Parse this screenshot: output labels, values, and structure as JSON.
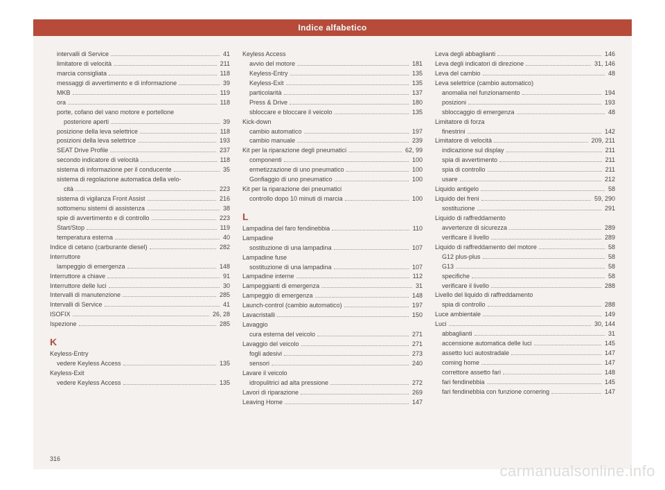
{
  "header": "Indice alfabetico",
  "page_number": "316",
  "watermark": "carmanualsonline.info",
  "style": {
    "page_bg": "#f5f1ee",
    "header_bg": "#b84a3a",
    "header_text": "#ffffff",
    "text_color": "#4a4540",
    "letter_color": "#b84a3a",
    "dot_color": "#9a9590",
    "entry_fontsize": 9,
    "header_fontsize": 12,
    "letter_fontsize": 14,
    "watermark_color": "#dcdcdc",
    "watermark_fontsize": 22
  },
  "columns": [
    {
      "items": [
        {
          "t": "entry",
          "indent": 1,
          "label": "intervalli di Service",
          "pg": "41"
        },
        {
          "t": "entry",
          "indent": 1,
          "label": "limitatore di velocità",
          "pg": "211"
        },
        {
          "t": "entry",
          "indent": 1,
          "label": "marcia consigliata",
          "pg": "118"
        },
        {
          "t": "entry",
          "indent": 1,
          "label": "messaggi di avvertimento e di informazione",
          "pg": "39"
        },
        {
          "t": "entry",
          "indent": 1,
          "label": "MKB",
          "pg": "119"
        },
        {
          "t": "entry",
          "indent": 1,
          "label": "ora",
          "pg": "118"
        },
        {
          "t": "entry",
          "indent": 1,
          "label": "porte, cofano del vano motore e portellone",
          "pg": ""
        },
        {
          "t": "entry",
          "indent": 2,
          "label": "posteriore aperti",
          "pg": "39"
        },
        {
          "t": "entry",
          "indent": 1,
          "label": "posizione della leva selettrice",
          "pg": "118"
        },
        {
          "t": "entry",
          "indent": 1,
          "label": "posizioni della leva selettrice",
          "pg": "193"
        },
        {
          "t": "entry",
          "indent": 1,
          "label": "SEAT Drive Profile",
          "pg": "237"
        },
        {
          "t": "entry",
          "indent": 1,
          "label": "secondo indicatore di velocità",
          "pg": "118"
        },
        {
          "t": "entry",
          "indent": 1,
          "label": "sistema di informazione per il conducente",
          "pg": "35"
        },
        {
          "t": "entry",
          "indent": 1,
          "label": "sistema di regolazione automatica della velo-",
          "pg": ""
        },
        {
          "t": "entry",
          "indent": 2,
          "label": "cità",
          "pg": "223"
        },
        {
          "t": "entry",
          "indent": 1,
          "label": "sistema di vigilanza Front Assist",
          "pg": "216"
        },
        {
          "t": "entry",
          "indent": 1,
          "label": "sottomenu sistemi di assistenza",
          "pg": "38"
        },
        {
          "t": "entry",
          "indent": 1,
          "label": "spie di avvertimento e di controllo",
          "pg": "223"
        },
        {
          "t": "entry",
          "indent": 1,
          "label": "Start/Stop",
          "pg": "119"
        },
        {
          "t": "entry",
          "indent": 1,
          "label": "temperatura esterna",
          "pg": "40"
        },
        {
          "t": "entry",
          "indent": 0,
          "label": "Indice di cetano (carburante diesel)",
          "pg": "282"
        },
        {
          "t": "entry",
          "indent": 0,
          "label": "Interruttore",
          "pg": ""
        },
        {
          "t": "entry",
          "indent": 1,
          "label": "lampeggio di emergenza",
          "pg": "148"
        },
        {
          "t": "entry",
          "indent": 0,
          "label": "Interruttore a chiave",
          "pg": "91"
        },
        {
          "t": "entry",
          "indent": 0,
          "label": "Interruttore delle luci",
          "pg": "30"
        },
        {
          "t": "entry",
          "indent": 0,
          "label": "Intervalli di manutenzione",
          "pg": "285"
        },
        {
          "t": "entry",
          "indent": 0,
          "label": "Intervalli di Service",
          "pg": "41"
        },
        {
          "t": "entry",
          "indent": 0,
          "label": "ISOFIX",
          "pg": "26, 28"
        },
        {
          "t": "entry",
          "indent": 0,
          "label": "Ispezione",
          "pg": "285"
        },
        {
          "t": "letter",
          "label": "K"
        },
        {
          "t": "entry",
          "indent": 0,
          "label": "Keyless-Entry",
          "pg": ""
        },
        {
          "t": "entry",
          "indent": 1,
          "label": "vedere Keyless Access",
          "pg": "135"
        },
        {
          "t": "entry",
          "indent": 0,
          "label": "Keyless-Exit",
          "pg": ""
        },
        {
          "t": "entry",
          "indent": 1,
          "label": "vedere Keyless Access",
          "pg": "135"
        }
      ]
    },
    {
      "items": [
        {
          "t": "entry",
          "indent": 0,
          "label": "Keyless Access",
          "pg": ""
        },
        {
          "t": "entry",
          "indent": 1,
          "label": "avvio del motore",
          "pg": "181"
        },
        {
          "t": "entry",
          "indent": 1,
          "label": "Keyless-Entry",
          "pg": "135"
        },
        {
          "t": "entry",
          "indent": 1,
          "label": "Keyless-Exit",
          "pg": "135"
        },
        {
          "t": "entry",
          "indent": 1,
          "label": "particolarità",
          "pg": "137"
        },
        {
          "t": "entry",
          "indent": 1,
          "label": "Press & Drive",
          "pg": "180"
        },
        {
          "t": "entry",
          "indent": 1,
          "label": "sbloccare e bloccare il veicolo",
          "pg": "135"
        },
        {
          "t": "entry",
          "indent": 0,
          "label": "Kick-down",
          "pg": ""
        },
        {
          "t": "entry",
          "indent": 1,
          "label": "cambio automatico",
          "pg": "197"
        },
        {
          "t": "entry",
          "indent": 1,
          "label": "cambio manuale",
          "pg": "239"
        },
        {
          "t": "entry",
          "indent": 0,
          "label": "Kit per la riparazione degli pneumatici",
          "pg": "62, 99"
        },
        {
          "t": "entry",
          "indent": 1,
          "label": "componenti",
          "pg": "100"
        },
        {
          "t": "entry",
          "indent": 1,
          "label": "ermetizzazione di uno pneumatico",
          "pg": "100"
        },
        {
          "t": "entry",
          "indent": 1,
          "label": "Gonfiaggio di uno pneumatico",
          "pg": "100"
        },
        {
          "t": "entry",
          "indent": 0,
          "label": "Kit per la riparazione dei pneumatici",
          "pg": ""
        },
        {
          "t": "entry",
          "indent": 1,
          "label": "controllo dopo 10 minuti di marcia",
          "pg": "100"
        },
        {
          "t": "letter",
          "label": "L"
        },
        {
          "t": "entry",
          "indent": 0,
          "label": "Lampadina del faro fendinebbia",
          "pg": "110"
        },
        {
          "t": "entry",
          "indent": 0,
          "label": "Lampadine",
          "pg": ""
        },
        {
          "t": "entry",
          "indent": 1,
          "label": "sostituzione di una lampadina",
          "pg": "107"
        },
        {
          "t": "entry",
          "indent": 0,
          "label": "Lampadine fuse",
          "pg": ""
        },
        {
          "t": "entry",
          "indent": 1,
          "label": "sostituzione di una lampadina",
          "pg": "107"
        },
        {
          "t": "entry",
          "indent": 0,
          "label": "Lampadine interne",
          "pg": "112"
        },
        {
          "t": "entry",
          "indent": 0,
          "label": "Lampeggianti di emergenza",
          "pg": "31"
        },
        {
          "t": "entry",
          "indent": 0,
          "label": "Lampeggio di emergenza",
          "pg": "148"
        },
        {
          "t": "entry",
          "indent": 0,
          "label": "Launch-control (cambio automatico)",
          "pg": "197"
        },
        {
          "t": "entry",
          "indent": 0,
          "label": "Lavacristalli",
          "pg": "150"
        },
        {
          "t": "entry",
          "indent": 0,
          "label": "Lavaggio",
          "pg": ""
        },
        {
          "t": "entry",
          "indent": 1,
          "label": "cura esterna del veicolo",
          "pg": "271"
        },
        {
          "t": "entry",
          "indent": 0,
          "label": "Lavaggio del veicolo",
          "pg": "271"
        },
        {
          "t": "entry",
          "indent": 1,
          "label": "fogli adesivi",
          "pg": "273"
        },
        {
          "t": "entry",
          "indent": 1,
          "label": "sensori",
          "pg": "240"
        },
        {
          "t": "entry",
          "indent": 0,
          "label": "Lavare il veicolo",
          "pg": ""
        },
        {
          "t": "entry",
          "indent": 1,
          "label": "idropulitrici ad alta pressione",
          "pg": "272"
        },
        {
          "t": "entry",
          "indent": 0,
          "label": "Lavori di riparazione",
          "pg": "269"
        },
        {
          "t": "entry",
          "indent": 0,
          "label": "Leaving Home",
          "pg": "147"
        }
      ]
    },
    {
      "items": [
        {
          "t": "entry",
          "indent": 0,
          "label": "Leva degli abbaglianti",
          "pg": "146"
        },
        {
          "t": "entry",
          "indent": 0,
          "label": "Leva degli indicatori di direzione",
          "pg": "31, 146"
        },
        {
          "t": "entry",
          "indent": 0,
          "label": "Leva del cambio",
          "pg": "48"
        },
        {
          "t": "entry",
          "indent": 0,
          "label": "Leva selettrice (cambio automatico)",
          "pg": ""
        },
        {
          "t": "entry",
          "indent": 1,
          "label": "anomalia nel funzionamento",
          "pg": "194"
        },
        {
          "t": "entry",
          "indent": 1,
          "label": "posizioni",
          "pg": "193"
        },
        {
          "t": "entry",
          "indent": 1,
          "label": "sbloccaggio di emergenza",
          "pg": "48"
        },
        {
          "t": "entry",
          "indent": 0,
          "label": "Limitatore di forza",
          "pg": ""
        },
        {
          "t": "entry",
          "indent": 1,
          "label": "finestrini",
          "pg": "142"
        },
        {
          "t": "entry",
          "indent": 0,
          "label": "Limitatore di velocità",
          "pg": "209, 211"
        },
        {
          "t": "entry",
          "indent": 1,
          "label": "indicazione sul display",
          "pg": "211"
        },
        {
          "t": "entry",
          "indent": 1,
          "label": "spia di avvertimento",
          "pg": "211"
        },
        {
          "t": "entry",
          "indent": 1,
          "label": "spia di controllo",
          "pg": "211"
        },
        {
          "t": "entry",
          "indent": 1,
          "label": "usare",
          "pg": "212"
        },
        {
          "t": "entry",
          "indent": 0,
          "label": "Liquido antigelo",
          "pg": "58"
        },
        {
          "t": "entry",
          "indent": 0,
          "label": "Liquido dei freni",
          "pg": "59, 290"
        },
        {
          "t": "entry",
          "indent": 1,
          "label": "sostituzione",
          "pg": "291"
        },
        {
          "t": "entry",
          "indent": 0,
          "label": "Liquido di raffreddamento",
          "pg": ""
        },
        {
          "t": "entry",
          "indent": 1,
          "label": "avvertenze di sicurezza",
          "pg": "289"
        },
        {
          "t": "entry",
          "indent": 1,
          "label": "verificare il livello",
          "pg": "289"
        },
        {
          "t": "entry",
          "indent": 0,
          "label": "Liquido di raffreddamento del motore",
          "pg": "58"
        },
        {
          "t": "entry",
          "indent": 1,
          "label": "G12 plus-plus",
          "pg": "58"
        },
        {
          "t": "entry",
          "indent": 1,
          "label": "G13",
          "pg": "58"
        },
        {
          "t": "entry",
          "indent": 1,
          "label": "specifiche",
          "pg": "58"
        },
        {
          "t": "entry",
          "indent": 1,
          "label": "verificare il livello",
          "pg": "288"
        },
        {
          "t": "entry",
          "indent": 0,
          "label": "Livello del liquido di raffreddamento",
          "pg": ""
        },
        {
          "t": "entry",
          "indent": 1,
          "label": "spia di controllo",
          "pg": "288"
        },
        {
          "t": "entry",
          "indent": 0,
          "label": "Luce ambientale",
          "pg": "149"
        },
        {
          "t": "entry",
          "indent": 0,
          "label": "Luci",
          "pg": "30, 144"
        },
        {
          "t": "entry",
          "indent": 1,
          "label": "abbaglianti",
          "pg": "31"
        },
        {
          "t": "entry",
          "indent": 1,
          "label": "accensione automatica delle luci",
          "pg": "145"
        },
        {
          "t": "entry",
          "indent": 1,
          "label": "assetto luci autostradale",
          "pg": "147"
        },
        {
          "t": "entry",
          "indent": 1,
          "label": "coming home",
          "pg": "147"
        },
        {
          "t": "entry",
          "indent": 1,
          "label": "correttore assetto fari",
          "pg": "148"
        },
        {
          "t": "entry",
          "indent": 1,
          "label": "fari fendinebbia",
          "pg": "145"
        },
        {
          "t": "entry",
          "indent": 1,
          "label": "fari fendinebbia con funzione cornering",
          "pg": "147"
        }
      ]
    }
  ]
}
